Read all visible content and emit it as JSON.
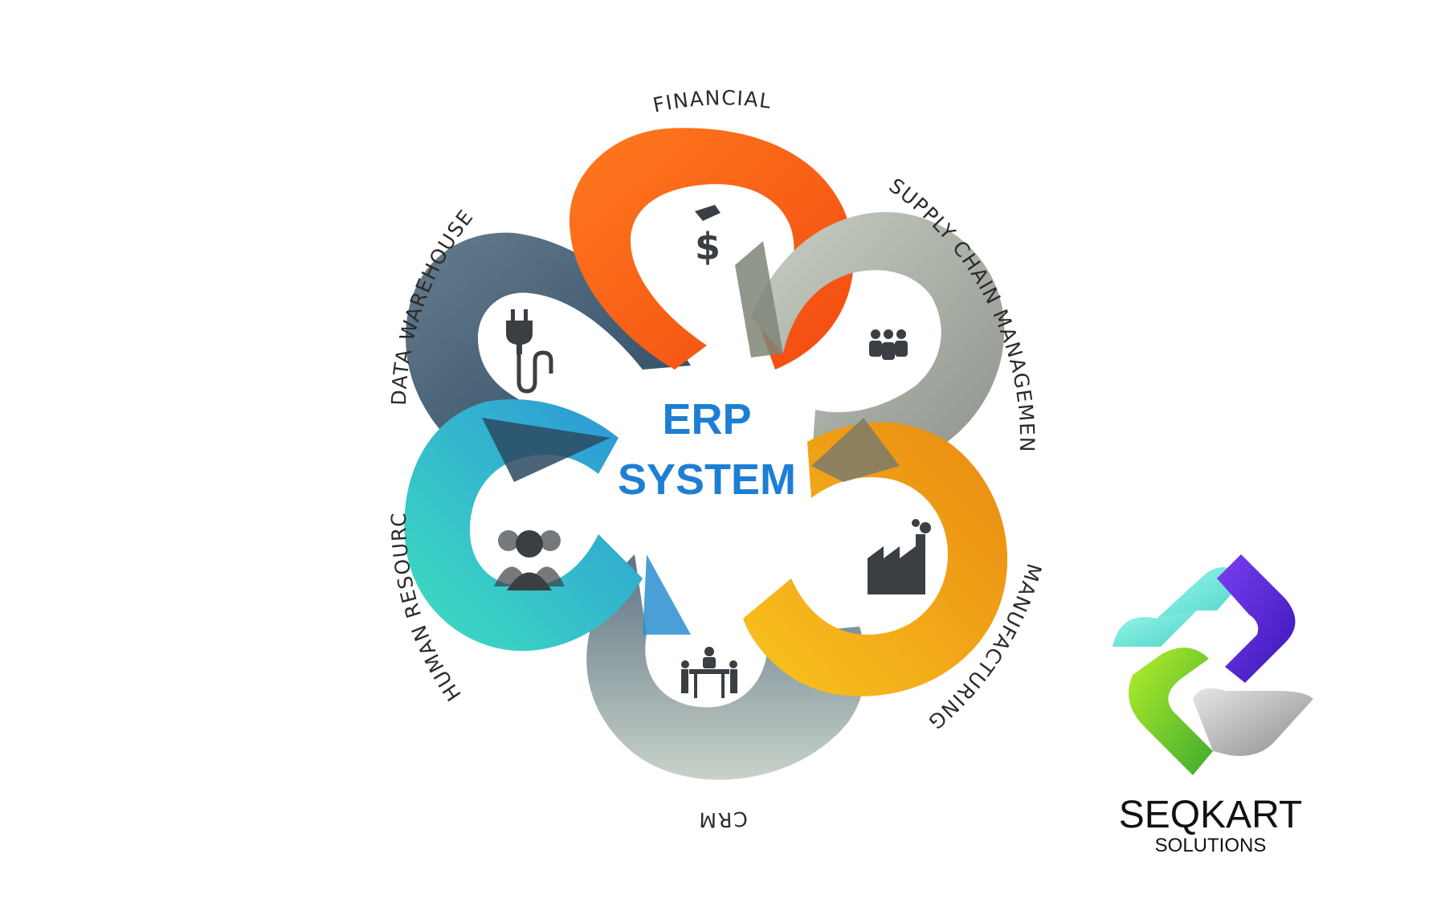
{
  "center": {
    "line1": "ERP",
    "line2": "SYSTEM"
  },
  "modules": [
    {
      "id": "financial",
      "label": "FINANCIAL",
      "icon": "hand-dollar-icon",
      "color_start": "#ff6a1a",
      "color_end": "#f55314"
    },
    {
      "id": "supply-chain",
      "label": "SUPPLY CHAIN MANAGEMENT",
      "icon": "team-icon",
      "color_start": "#b7beb5",
      "color_end": "#8c9088"
    },
    {
      "id": "manufacturing",
      "label": "MANUFACTURING",
      "icon": "factory-icon",
      "color_start": "#f8bf1e",
      "color_end": "#ea8c12"
    },
    {
      "id": "crm",
      "label": "CRM",
      "icon": "meeting-icon",
      "color_start": "#c4cdc5",
      "color_end": "#6f8594"
    },
    {
      "id": "human-resource",
      "label": "HUMAN RESOURCE",
      "icon": "group-icon",
      "color_start": "#3fd8bf",
      "color_end": "#2a9bd6"
    },
    {
      "id": "data-warehouse",
      "label": "DATA WAREHOUSE",
      "icon": "plug-icon",
      "color_start": "#5e7586",
      "color_end": "#2f4b63"
    }
  ],
  "brand": {
    "name": "SEQKART",
    "tagline": "SOLUTIONS"
  },
  "colors": {
    "center_text": "#1d7fd3",
    "label_text": "#2b2b2b",
    "icon": "#3a3f44"
  }
}
